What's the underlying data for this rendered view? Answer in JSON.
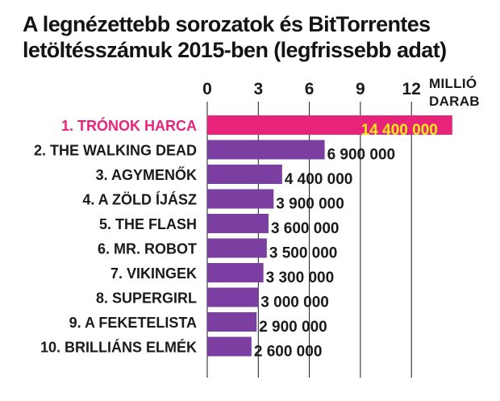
{
  "title_lines": [
    "A legnézettebb sorozatok és BitTorrentes",
    "letöltésszámuk 2015-ben (legfrissebb adat)"
  ],
  "chart_data": {
    "type": "bar",
    "orientation": "horizontal",
    "title": "A legnézettebb sorozatok és BitTorrentes letöltésszámuk 2015-ben (legfrissebb adat)",
    "unit_label": [
      "MILLIÓ",
      "DARAB"
    ],
    "ticks": [
      "0",
      "3",
      "6",
      "9",
      "12"
    ],
    "tick_values": [
      0,
      3,
      6,
      9,
      12
    ],
    "xlim": [
      0,
      15
    ],
    "grid": true,
    "categories": [
      "1. TRÓNOK HARCA",
      "2. THE WALKING DEAD",
      "3. AGYMENŐK",
      "4. A ZÖLD ÍJÁSZ",
      "5. THE FLASH",
      "6. MR. ROBOT",
      "7. VIKINGEK",
      "8. SUPERGIRL",
      "9. A FEKETELISTA",
      "10. BRILLIÁNS ELMÉK"
    ],
    "values": [
      14400000,
      6900000,
      4400000,
      3900000,
      3600000,
      3500000,
      3300000,
      3000000,
      2900000,
      2600000
    ],
    "value_labels": [
      "14 400 000",
      "6 900 000",
      "4 400 000",
      "3 900 000",
      "3 600 000",
      "3 500 000",
      "3 300 000",
      "3 000 000",
      "2 900 000",
      "2 600 000"
    ],
    "colors": {
      "highlight_bar": "#e8247a",
      "bar": "#7a3fa0",
      "highlight_label": "#e8247a",
      "highlight_value": "#f3ec18",
      "text": "#1a1a1a",
      "grid": "#1a1a1a"
    }
  }
}
